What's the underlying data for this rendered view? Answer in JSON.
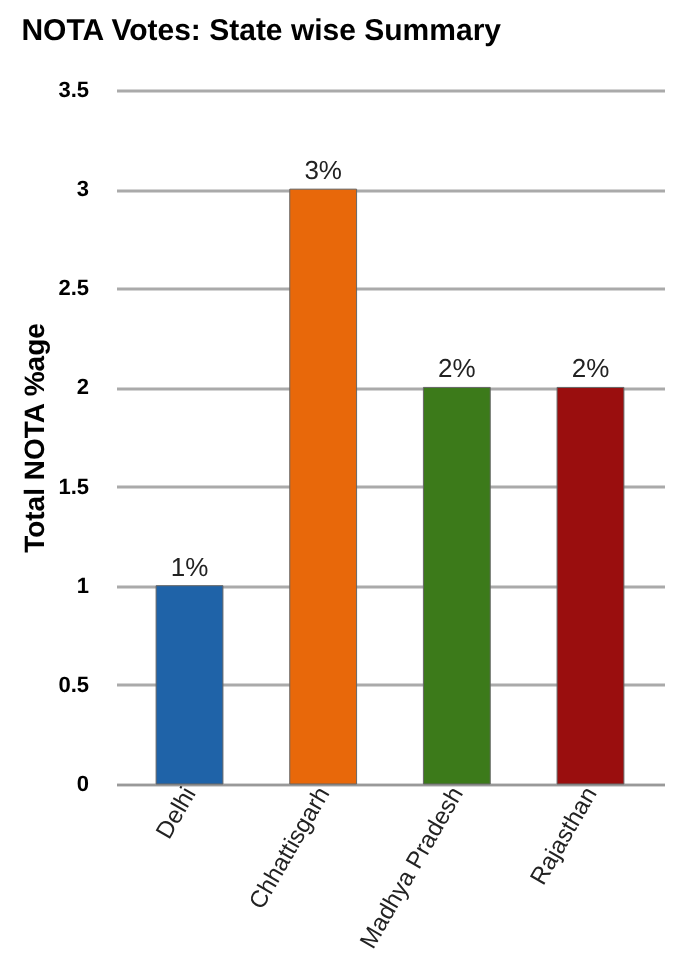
{
  "chart_data": {
    "type": "bar",
    "title": "NOTA Votes: State wise Summary",
    "ylabel": "Total NOTA %age",
    "categories": [
      "Delhi",
      "Chhattisgarh",
      "Madhya Pradesh",
      "Rajasthan"
    ],
    "values": [
      1,
      3,
      2,
      2
    ],
    "colors": [
      "#1f63a8",
      "#e8680a",
      "#3c7a1a",
      "#9a0e0e"
    ],
    "value_labels": [
      "1%",
      "3%",
      "2%",
      "2%"
    ],
    "ylim": [
      0,
      3.5
    ],
    "yticks": [
      0,
      0.5,
      1,
      1.5,
      2,
      2.5,
      3,
      3.5
    ],
    "grid": "y"
  }
}
